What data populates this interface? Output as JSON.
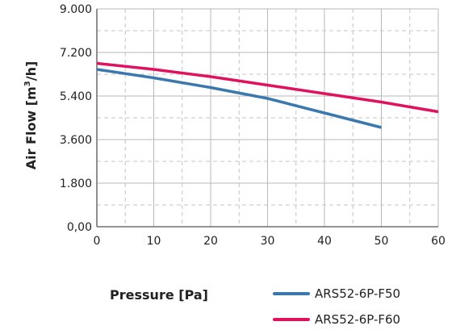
{
  "chart_data": {
    "type": "line",
    "xlabel": "Pressure [Pa]",
    "ylabel": "Air Flow [m³/h]",
    "ylabel_prefix": "Air Flow [m",
    "ylabel_sup": "3",
    "ylabel_suffix": "/h]",
    "xlim": [
      0,
      60
    ],
    "ylim": [
      0,
      9000
    ],
    "x_ticks": [
      "0",
      "10",
      "20",
      "30",
      "40",
      "50",
      "60"
    ],
    "x_tick_values": [
      0,
      10,
      20,
      30,
      40,
      50,
      60
    ],
    "y_ticks": [
      "0,00",
      "1.800",
      "3.600",
      "5.400",
      "7.200",
      "9.000"
    ],
    "y_tick_values": [
      0,
      1800,
      3600,
      5400,
      7200,
      9000
    ],
    "grid": true,
    "legend_position": "bottom-right",
    "series": [
      {
        "name": "ARS52-6P-F50",
        "color": "#3a78ae",
        "x": [
          0,
          10,
          20,
          30,
          40,
          50
        ],
        "y": [
          6500,
          6150,
          5750,
          5300,
          4700,
          4100
        ]
      },
      {
        "name": "ARS52-6P-F60",
        "color": "#e0115f",
        "x": [
          0,
          10,
          20,
          30,
          40,
          50,
          60
        ],
        "y": [
          6750,
          6500,
          6200,
          5850,
          5500,
          5150,
          4750
        ]
      }
    ]
  }
}
